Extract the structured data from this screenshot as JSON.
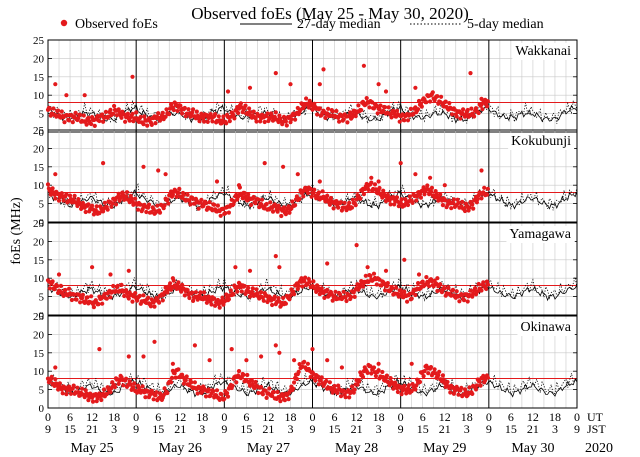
{
  "chart_data": {
    "type": "scatter",
    "title": "Observed foEs (May 25 - May 30, 2020)",
    "ylabel": "foEs (MHz)",
    "ylim": [
      0,
      25
    ],
    "yticks": [
      0,
      5,
      10,
      15,
      20,
      25
    ],
    "xlim_hours_ut": [
      0,
      144
    ],
    "hour_ticks": {
      "ut": [
        "0",
        "6",
        "12",
        "18",
        "0",
        "6",
        "12",
        "18",
        "0",
        "6",
        "12",
        "18",
        "0",
        "6",
        "12",
        "18",
        "0",
        "6",
        "12",
        "18",
        "0",
        "6",
        "12",
        "18",
        "0"
      ],
      "jst": [
        "9",
        "15",
        "21",
        "3",
        "9",
        "15",
        "21",
        "3",
        "9",
        "15",
        "21",
        "3",
        "9",
        "15",
        "21",
        "3",
        "9",
        "15",
        "21",
        "3",
        "9",
        "15",
        "21",
        "3",
        "9"
      ],
      "ut_label": "UT",
      "jst_label": "JST"
    },
    "days": [
      "May 25",
      "May 26",
      "May 27",
      "May 28",
      "May 29",
      "May 30"
    ],
    "year": "2020",
    "reference_line_mhz": 8,
    "legend": {
      "observed": "Observed foEs",
      "median27": "27-day median",
      "median5": "5-day median"
    },
    "grid": true,
    "stations": [
      {
        "name": "Wakkanai",
        "observed_base": [
          6,
          5,
          5,
          4,
          4,
          4,
          4,
          3,
          3,
          3,
          4,
          4,
          5,
          6,
          5,
          4,
          4,
          4,
          3,
          3,
          3,
          4,
          4,
          5,
          7,
          7,
          6,
          5,
          5,
          4,
          4,
          4,
          4,
          3,
          3,
          4,
          5,
          7,
          6,
          5,
          4,
          4,
          4,
          4,
          4,
          3,
          3,
          4,
          5,
          7,
          8,
          7,
          6,
          5,
          5,
          5,
          4,
          4,
          4,
          5,
          6,
          8,
          8,
          7,
          6,
          6,
          5,
          5,
          4,
          4,
          5,
          6,
          8,
          9,
          10,
          9,
          8,
          7,
          6,
          5,
          5,
          5,
          5,
          6,
          8,
          8
        ],
        "observed_spikes": [
          [
            2,
            13
          ],
          [
            5,
            10
          ],
          [
            10,
            10
          ],
          [
            23,
            15
          ],
          [
            49,
            11
          ],
          [
            55,
            12
          ],
          [
            62,
            16
          ],
          [
            66,
            13
          ],
          [
            75,
            17
          ],
          [
            74,
            13
          ],
          [
            86,
            18
          ],
          [
            90,
            13
          ],
          [
            92,
            11
          ],
          [
            100,
            12
          ],
          [
            115,
            16
          ],
          [
            118,
            9
          ]
        ],
        "median27_base": [
          6.5,
          5.5,
          5,
          4.5,
          4,
          4,
          4,
          4,
          4.5,
          5,
          5,
          5,
          5,
          4.5,
          4,
          3.5,
          3.5,
          3.5,
          3.5,
          4,
          5,
          5.5,
          6,
          6.5
        ],
        "median5_base": [
          7,
          6,
          5.5,
          5,
          4.5,
          4.5,
          4.5,
          4.5,
          5,
          5.5,
          6,
          6,
          5.5,
          5,
          4.5,
          4,
          4,
          4,
          4,
          4.5,
          5.5,
          6,
          6.5,
          7
        ]
      },
      {
        "name": "Kokubunji",
        "observed_base": [
          9,
          8,
          7,
          7,
          6,
          6,
          5,
          4,
          4,
          3,
          3,
          4,
          5,
          6,
          7,
          7,
          6,
          5,
          4,
          4,
          3,
          3,
          4,
          6,
          8,
          8,
          7,
          6,
          6,
          5,
          5,
          4,
          4,
          3,
          3,
          4,
          6,
          8,
          7,
          6,
          6,
          5,
          4,
          4,
          4,
          3,
          3,
          4,
          6,
          8,
          9,
          8,
          7,
          7,
          6,
          5,
          5,
          4,
          4,
          5,
          7,
          9,
          10,
          9,
          8,
          7,
          6,
          6,
          5,
          5,
          6,
          7,
          8,
          9,
          8,
          7,
          6,
          5,
          5,
          5,
          4,
          4,
          5,
          7,
          8,
          8
        ],
        "observed_spikes": [
          [
            2,
            13
          ],
          [
            15,
            16
          ],
          [
            26,
            15
          ],
          [
            30,
            14
          ],
          [
            32,
            13
          ],
          [
            46,
            11
          ],
          [
            52,
            10
          ],
          [
            59,
            16
          ],
          [
            64,
            15
          ],
          [
            68,
            13
          ],
          [
            74,
            11
          ],
          [
            88,
            12
          ],
          [
            90,
            11
          ],
          [
            96,
            16
          ],
          [
            100,
            13
          ],
          [
            104,
            12
          ],
          [
            108,
            10
          ],
          [
            118,
            14
          ]
        ],
        "median27_base": [
          8,
          7,
          6.5,
          6,
          5.5,
          5,
          4.5,
          4.5,
          5,
          5.5,
          6,
          6.5,
          6.5,
          6,
          5.5,
          5,
          4.5,
          4.5,
          4.5,
          5,
          6,
          6.5,
          7,
          7.5
        ],
        "median5_base": [
          9,
          8,
          7,
          6.5,
          6,
          5.5,
          5,
          5,
          5.5,
          6,
          6.5,
          7,
          7,
          6.5,
          6,
          5.5,
          5,
          5,
          5,
          5.5,
          6.5,
          7,
          7.5,
          8
        ]
      },
      {
        "name": "Yamagawa",
        "observed_base": [
          9,
          8,
          7,
          6,
          6,
          5,
          5,
          4,
          4,
          3,
          4,
          5,
          6,
          7,
          7,
          6,
          5,
          5,
          4,
          4,
          3,
          4,
          5,
          7,
          8,
          8,
          7,
          6,
          5,
          5,
          5,
          4,
          4,
          3,
          4,
          5,
          7,
          8,
          7,
          6,
          6,
          5,
          5,
          4,
          4,
          3,
          4,
          6,
          8,
          9,
          9,
          8,
          7,
          6,
          6,
          5,
          5,
          5,
          5,
          6,
          8,
          9,
          10,
          10,
          9,
          8,
          7,
          6,
          6,
          5,
          5,
          7,
          8,
          9,
          9,
          8,
          7,
          6,
          6,
          5,
          5,
          5,
          6,
          7,
          8,
          8
        ],
        "observed_spikes": [
          [
            3,
            11
          ],
          [
            12,
            13
          ],
          [
            17,
            11
          ],
          [
            22,
            12
          ],
          [
            34,
            10
          ],
          [
            51,
            13
          ],
          [
            55,
            12
          ],
          [
            62,
            16
          ],
          [
            63,
            13
          ],
          [
            69,
            10
          ],
          [
            76,
            14
          ],
          [
            84,
            19
          ],
          [
            87,
            13
          ],
          [
            92,
            12
          ],
          [
            97,
            15
          ],
          [
            101,
            11
          ],
          [
            106,
            10
          ]
        ],
        "median27_base": [
          7.5,
          7,
          6.5,
          6,
          5.5,
          5.5,
          5,
          5,
          5.5,
          6,
          6.5,
          7,
          7,
          6.5,
          6,
          5.5,
          5,
          5,
          5,
          5.5,
          6,
          6.5,
          7,
          7.5
        ],
        "median5_base": [
          8.5,
          8,
          7.5,
          7,
          6.5,
          6,
          5.5,
          5.5,
          6,
          7,
          7.5,
          8,
          8,
          7.5,
          7,
          6.5,
          6,
          6,
          6,
          6.5,
          7,
          7.5,
          8,
          8.5
        ]
      },
      {
        "name": "Okinawa",
        "observed_base": [
          8,
          7,
          6,
          5,
          5,
          5,
          4,
          4,
          3,
          3,
          3,
          4,
          5,
          7,
          8,
          7,
          6,
          5,
          5,
          4,
          4,
          3,
          3,
          5,
          9,
          10,
          8,
          7,
          6,
          5,
          5,
          4,
          4,
          3,
          3,
          5,
          8,
          9,
          8,
          7,
          6,
          5,
          4,
          4,
          3,
          3,
          3,
          5,
          9,
          12,
          11,
          9,
          8,
          7,
          6,
          5,
          5,
          4,
          4,
          5,
          8,
          10,
          11,
          10,
          9,
          8,
          7,
          6,
          5,
          5,
          5,
          6,
          9,
          11,
          10,
          9,
          8,
          6,
          5,
          5,
          4,
          4,
          5,
          7,
          8,
          8
        ],
        "observed_spikes": [
          [
            2,
            11
          ],
          [
            14,
            16
          ],
          [
            22,
            14
          ],
          [
            26,
            14
          ],
          [
            29,
            18
          ],
          [
            34,
            12
          ],
          [
            40,
            17
          ],
          [
            44,
            13
          ],
          [
            50,
            16
          ],
          [
            54,
            13
          ],
          [
            58,
            14
          ],
          [
            62,
            17
          ],
          [
            63,
            15
          ],
          [
            67,
            13
          ],
          [
            72,
            16
          ],
          [
            76,
            13
          ],
          [
            80,
            11
          ],
          [
            90,
            12
          ],
          [
            99,
            12
          ]
        ],
        "median27_base": [
          7,
          6.5,
          6,
          5.5,
          5,
          4.5,
          4,
          4,
          4.5,
          5,
          5.5,
          6,
          6,
          5.5,
          5,
          4.5,
          4,
          4,
          4,
          4.5,
          5.5,
          6,
          6.5,
          7
        ],
        "median5_base": [
          8,
          7.5,
          7,
          6.5,
          6,
          5.5,
          5,
          5,
          5.5,
          6,
          6.5,
          7,
          7,
          6.5,
          6,
          5.5,
          5,
          5,
          5,
          5.5,
          6.5,
          7,
          7.5,
          8
        ]
      }
    ],
    "colors": {
      "observed": "#e31a1c",
      "reference_line": "#e31a1c",
      "median27": "#000000",
      "median5": "#000000",
      "grid": "#c8c8c8",
      "day_divider": "#000000"
    }
  }
}
